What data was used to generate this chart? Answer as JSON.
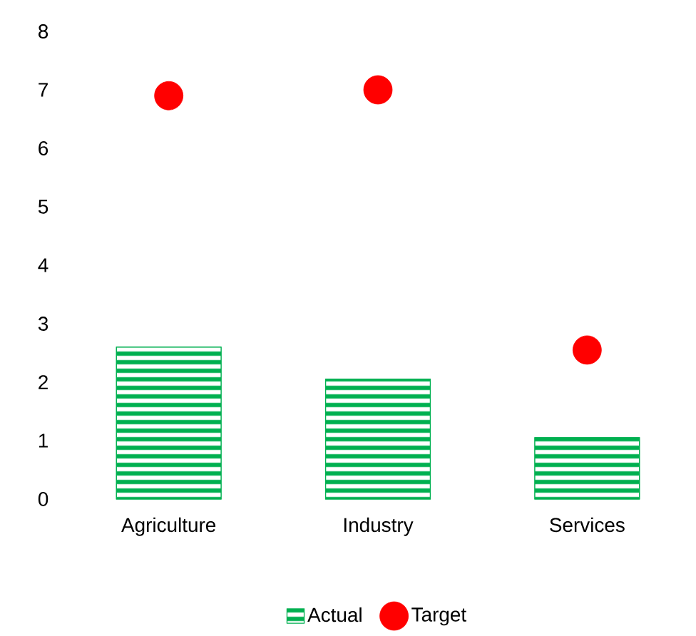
{
  "chart_data": {
    "type": "bar",
    "categories": [
      "Agriculture",
      "Industry",
      "Services"
    ],
    "series": [
      {
        "name": "Actual",
        "color": "#00b050",
        "values": [
          2.6,
          2.05,
          1.05
        ]
      },
      {
        "name": "Target",
        "type": "scatter",
        "color": "#ff0000",
        "values": [
          6.9,
          7.0,
          2.55
        ]
      }
    ],
    "ylim": [
      0,
      8
    ],
    "yticks": [
      0,
      1,
      2,
      3,
      4,
      5,
      6,
      7,
      8
    ],
    "grid": false,
    "legend": "bottom",
    "marker": "circle"
  }
}
